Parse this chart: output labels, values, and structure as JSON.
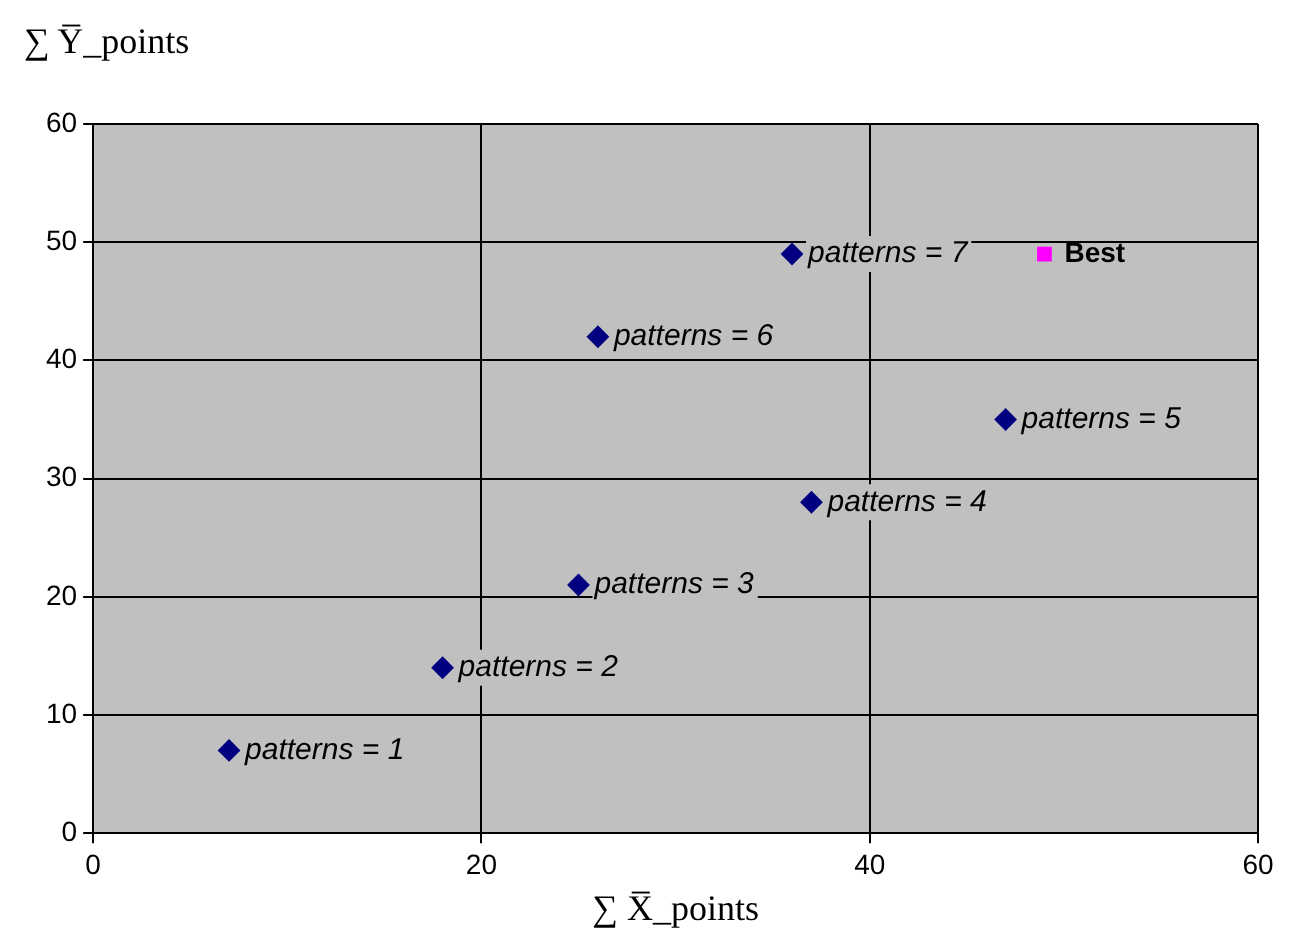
{
  "chart_data": {
    "type": "scatter",
    "xlabel": "∑ X̅_points",
    "ylabel": "∑ Y̅_points",
    "series": [
      {
        "color": "#000080",
        "marker": "diamond",
        "x": [
          7,
          18,
          25,
          37,
          47,
          26,
          36
        ],
        "values": [
          7,
          14,
          21,
          28,
          35,
          42,
          49
        ]
      },
      {
        "name": "Best",
        "color": "#ff00ff",
        "marker": "square",
        "x": [
          49
        ],
        "values": [
          49
        ]
      }
    ],
    "xlim": [
      0,
      60
    ],
    "xticks": [
      0,
      20,
      40,
      60
    ],
    "ylim": [
      0,
      60
    ],
    "yticks": [
      0,
      10,
      20,
      30,
      40,
      50,
      60
    ],
    "grid": true,
    "legend": false,
    "annotations": [
      {
        "text": "patterns = 1",
        "x": 7,
        "y": 7
      },
      {
        "text": "patterns = 2",
        "x": 18,
        "y": 14
      },
      {
        "text": "patterns = 3",
        "x": 25,
        "y": 21
      },
      {
        "text": "patterns = 4",
        "x": 37,
        "y": 28
      },
      {
        "text": "patterns = 5",
        "x": 47,
        "y": 35
      },
      {
        "text": "patterns = 6",
        "x": 26,
        "y": 42
      },
      {
        "text": "patterns = 7",
        "x": 36,
        "y": 49
      }
    ]
  }
}
